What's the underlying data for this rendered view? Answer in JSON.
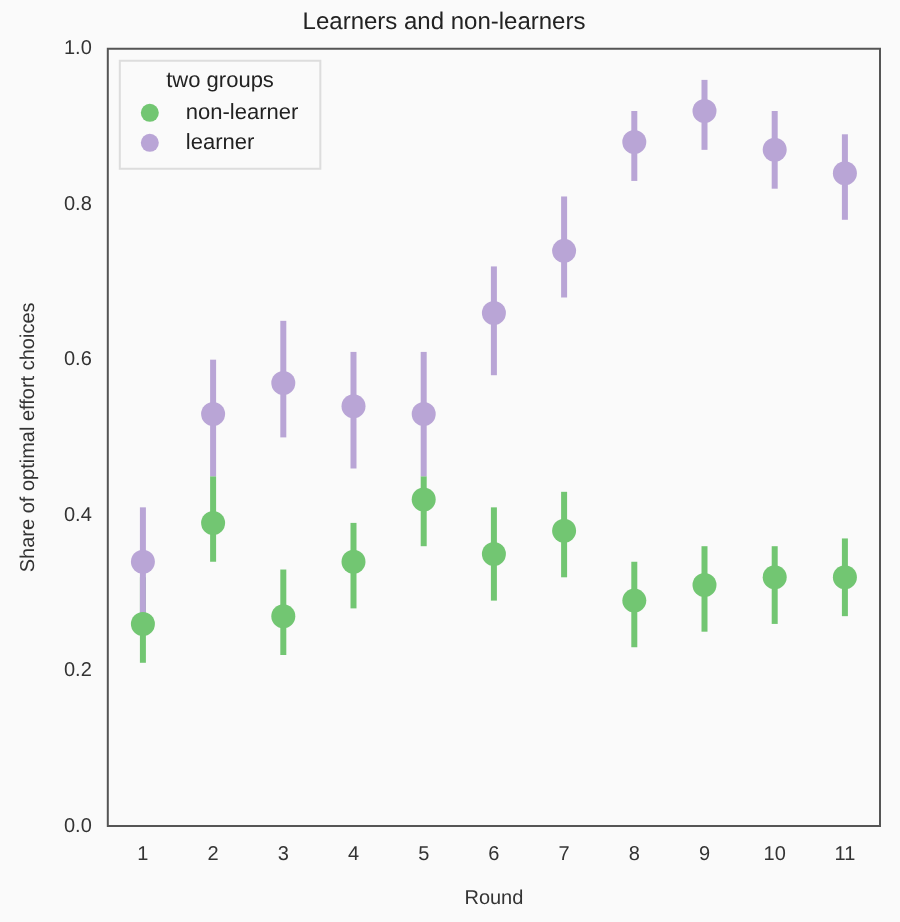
{
  "chart_data": {
    "type": "scatter",
    "title": "Learners and non-learners",
    "xlabel": "Round",
    "ylabel": "Share of optimal effort choices",
    "legend_title": "two groups",
    "categories": [
      "1",
      "2",
      "3",
      "4",
      "5",
      "6",
      "7",
      "8",
      "9",
      "10",
      "11"
    ],
    "series": [
      {
        "name": "non-learner",
        "color": "#72c672",
        "values": [
          0.26,
          0.39,
          0.27,
          0.34,
          0.42,
          0.35,
          0.38,
          0.29,
          0.31,
          0.32,
          0.32
        ],
        "errors": [
          [
            0.21,
            0.32
          ],
          [
            0.34,
            0.45
          ],
          [
            0.22,
            0.33
          ],
          [
            0.28,
            0.39
          ],
          [
            0.36,
            0.45
          ],
          [
            0.29,
            0.41
          ],
          [
            0.32,
            0.43
          ],
          [
            0.23,
            0.34
          ],
          [
            0.25,
            0.36
          ],
          [
            0.26,
            0.36
          ],
          [
            0.27,
            0.37
          ]
        ]
      },
      {
        "name": "learner",
        "color": "#b9a5d6",
        "values": [
          0.34,
          0.53,
          0.57,
          0.54,
          0.53,
          0.66,
          0.74,
          0.88,
          0.92,
          0.87,
          0.84
        ],
        "errors": [
          [
            0.27,
            0.41
          ],
          [
            0.45,
            0.6
          ],
          [
            0.5,
            0.65
          ],
          [
            0.46,
            0.61
          ],
          [
            0.45,
            0.61
          ],
          [
            0.58,
            0.72
          ],
          [
            0.68,
            0.81
          ],
          [
            0.83,
            0.92
          ],
          [
            0.87,
            0.96
          ],
          [
            0.82,
            0.92
          ],
          [
            0.78,
            0.89
          ]
        ]
      }
    ],
    "ylim": [
      0,
      1
    ],
    "yticks": [
      {
        "value": 0,
        "label": "0.0"
      },
      0.2,
      0.4,
      0.6,
      0.8,
      {
        "value": 1,
        "label": "1.0"
      }
    ],
    "grid": false,
    "legend": "top left",
    "marker": "circle"
  }
}
